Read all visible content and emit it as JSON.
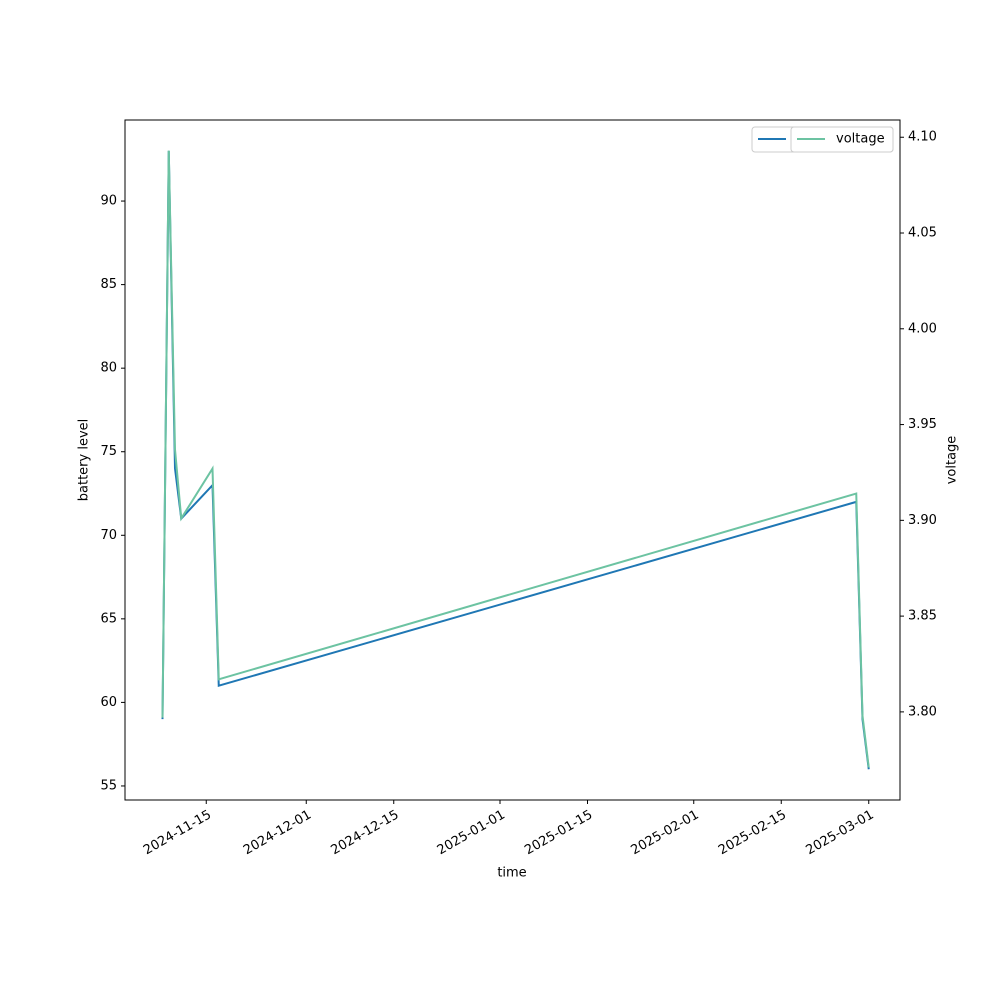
{
  "chart_data": {
    "type": "line",
    "x": [
      "2024-11-08",
      "2024-11-09",
      "2024-11-10",
      "2024-11-11",
      "2024-11-16",
      "2024-11-17",
      "2025-02-27",
      "2025-02-28",
      "2025-03-01"
    ],
    "series": [
      {
        "name": "battery level",
        "color": "#1f77b4",
        "values": [
          59,
          93,
          74,
          71,
          73,
          61,
          72,
          59,
          56
        ]
      },
      {
        "name": "voltage",
        "color": "#6cc3a2",
        "axis": "y2",
        "values": [
          3.797,
          4.093,
          3.937,
          3.901,
          3.927,
          3.817,
          3.914,
          3.798,
          3.771
        ]
      }
    ],
    "xlabel": "time",
    "ylabel": "battery level",
    "y2label": "voltage",
    "xlim": [
      "2024-11-02",
      "2025-03-06"
    ],
    "xticks": [
      "2024-11-15",
      "2024-12-01",
      "2024-12-15",
      "2025-01-01",
      "2025-01-15",
      "2025-02-01",
      "2025-02-15",
      "2025-03-01"
    ],
    "ylim": [
      54.16,
      94.85
    ],
    "yticks": [
      55,
      60,
      65,
      70,
      75,
      80,
      85,
      90
    ],
    "y2lim": [
      3.754,
      4.109
    ],
    "y2ticks": [
      {
        "value": 3.8,
        "label": "3.80"
      },
      3.85,
      {
        "value": 3.9,
        "label": "3.90"
      },
      3.95,
      {
        "value": 4.0,
        "label": "4.00"
      },
      4.05,
      {
        "value": 4.1,
        "label": "4.10"
      }
    ],
    "legend": "upper right",
    "grid": false
  }
}
